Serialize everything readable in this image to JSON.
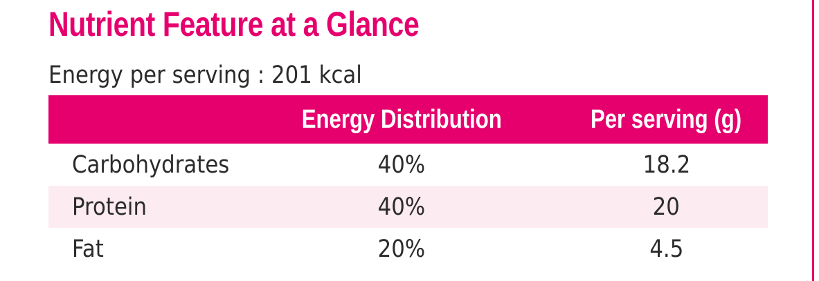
{
  "title": "Nutrient Feature at a Glance",
  "energy_line": "Energy per serving : 201 kcal",
  "table": {
    "headers": [
      "",
      "Energy Distribution",
      "Per serving (g)"
    ],
    "rows": [
      {
        "name": "Carbohydrates",
        "distribution": "40%",
        "per_serving": "18.2"
      },
      {
        "name": "Protein",
        "distribution": "40%",
        "per_serving": "20"
      },
      {
        "name": "Fat",
        "distribution": "20%",
        "per_serving": "4.5"
      }
    ]
  },
  "colors": {
    "accent": "#e5006e",
    "alt_row": "#fcebf1",
    "text": "#2b2b2b"
  }
}
